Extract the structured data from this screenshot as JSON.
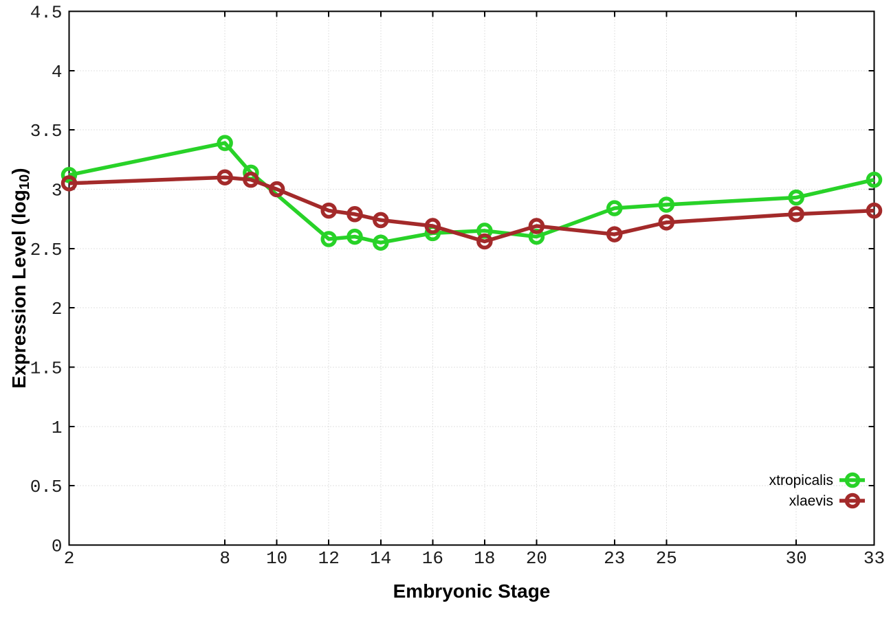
{
  "figure": {
    "background": "#ffffff"
  },
  "chart_data": {
    "type": "line",
    "title": "",
    "xlabel": "Embryonic Stage",
    "ylabel": "Expression Level (log10)",
    "ylabel_parts": {
      "pre": "Expression Level (log",
      "sub": "10",
      "post": ")"
    },
    "xlim": [
      2,
      33
    ],
    "ylim": [
      0,
      4.5
    ],
    "xticks": [
      2,
      8,
      10,
      12,
      14,
      16,
      18,
      20,
      23,
      25,
      30,
      33
    ],
    "xtick_labels": [
      "2",
      "8",
      "10",
      "12",
      "14",
      "16",
      "18",
      "20",
      "23",
      "25",
      "30",
      "33"
    ],
    "yticks": [
      0,
      0.5,
      1,
      1.5,
      2,
      2.5,
      3,
      3.5,
      4,
      4.5
    ],
    "ytick_labels": [
      "0",
      "0.5",
      "1",
      "1.5",
      "2",
      "2.5",
      "3",
      "3.5",
      "4",
      "4.5"
    ],
    "grid": true,
    "legend": {
      "position": "bottom-right",
      "entries": [
        "xtropicalis",
        "xlaevis"
      ]
    },
    "series": [
      {
        "name": "xtropicalis",
        "color": "#28d228",
        "marker": "open-circle",
        "x": [
          2,
          8,
          9,
          12,
          13,
          14,
          16,
          18,
          20,
          23,
          25,
          30,
          33
        ],
        "y": [
          3.12,
          3.39,
          3.14,
          2.58,
          2.6,
          2.55,
          2.63,
          2.65,
          2.6,
          2.84,
          2.87,
          2.93,
          3.08
        ]
      },
      {
        "name": "xlaevis",
        "color": "#a32a2a",
        "marker": "open-circle",
        "x": [
          2,
          8,
          9,
          10,
          12,
          13,
          14,
          16,
          18,
          20,
          23,
          25,
          30,
          33
        ],
        "y": [
          3.05,
          3.1,
          3.08,
          3.0,
          2.82,
          2.79,
          2.74,
          2.69,
          2.56,
          2.69,
          2.62,
          2.72,
          2.79,
          2.82
        ]
      }
    ],
    "colors": {
      "grid": "#c4c4c4",
      "axis": "#000000",
      "tick_text": "#1c1c1c"
    }
  }
}
